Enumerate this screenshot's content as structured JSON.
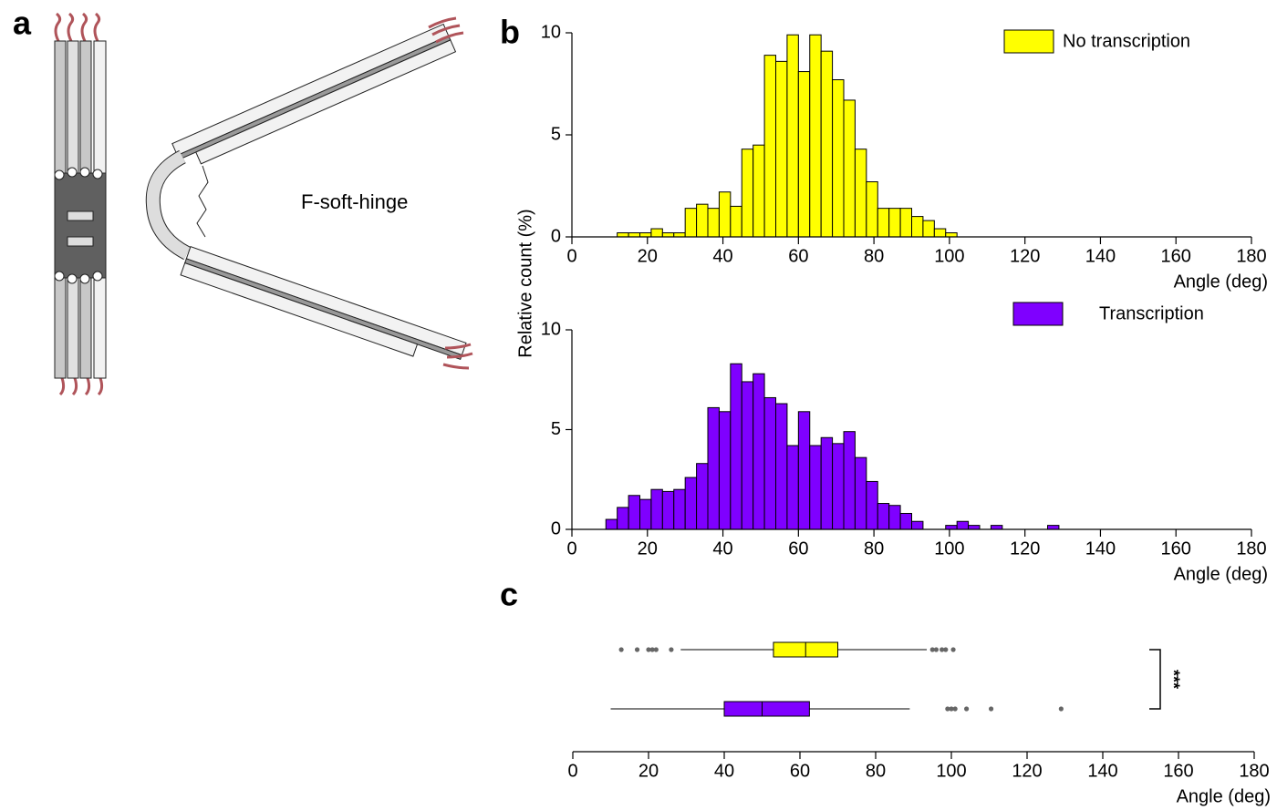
{
  "panel_labels": [
    "a",
    "b",
    "c"
  ],
  "diagram": {
    "label": "F-soft-hinge"
  },
  "chart_data": [
    {
      "type": "histogram",
      "legend": "No transcription",
      "color": "#ffff00",
      "bins": [
        12,
        15,
        18,
        21,
        24,
        27,
        30,
        33,
        36,
        39,
        42,
        45,
        48,
        51,
        54,
        57,
        60,
        63,
        66,
        69,
        72,
        75,
        78,
        81,
        84,
        87,
        90,
        93,
        96,
        99,
        102
      ],
      "values": [
        0.2,
        0.2,
        0.2,
        0.4,
        0.2,
        0.2,
        1.4,
        1.6,
        1.4,
        2.2,
        1.5,
        4.3,
        4.5,
        8.9,
        8.6,
        9.9,
        8.1,
        9.9,
        9.1,
        7.7,
        6.7,
        4.3,
        2.7,
        1.4,
        1.4,
        1.4,
        1.0,
        0.8,
        0.4,
        0.2
      ],
      "xlim": [
        0,
        180
      ],
      "xticks": [
        0,
        20,
        40,
        60,
        80,
        100,
        120,
        140,
        160,
        180
      ],
      "ylim": [
        0,
        10
      ],
      "yticks": [
        0,
        5,
        10
      ],
      "xlabel": "Angle (deg)",
      "ylabel": "Relative count (%)"
    },
    {
      "type": "histogram",
      "legend": "Transcription",
      "color": "#7f00ff",
      "bins": [
        9,
        12,
        15,
        18,
        21,
        24,
        27,
        30,
        33,
        36,
        39,
        42,
        45,
        48,
        51,
        54,
        57,
        60,
        63,
        66,
        69,
        72,
        75,
        78,
        81,
        84,
        87,
        90,
        93,
        96,
        99,
        102,
        105,
        108,
        111,
        114,
        117,
        120,
        123,
        126,
        129
      ],
      "values": [
        0.5,
        1.1,
        1.7,
        1.5,
        2.0,
        1.9,
        2.0,
        2.6,
        3.3,
        6.1,
        5.9,
        8.3,
        7.4,
        7.8,
        6.6,
        6.3,
        4.2,
        5.9,
        4.2,
        4.6,
        4.3,
        4.9,
        3.6,
        2.4,
        1.3,
        1.2,
        0.8,
        0.4,
        0,
        0,
        0.2,
        0.4,
        0.2,
        0,
        0.2,
        0,
        0,
        0,
        0,
        0.2
      ],
      "xlim": [
        0,
        180
      ],
      "xticks": [
        0,
        20,
        40,
        60,
        80,
        100,
        120,
        140,
        160,
        180
      ],
      "ylim": [
        0,
        10
      ],
      "yticks": [
        0,
        5,
        10
      ],
      "xlabel": "Angle (deg)"
    },
    {
      "type": "box",
      "boxes": [
        {
          "color": "#ffff00",
          "low": 28.5,
          "q1": 53,
          "median": 61.5,
          "q3": 70,
          "high": 93.5,
          "outliers": [
            12.8,
            17,
            20,
            21,
            22,
            26,
            95,
            96,
            97.5,
            98.5,
            100.5
          ]
        },
        {
          "color": "#7f00ff",
          "low": 10,
          "q1": 40,
          "median": 50,
          "q3": 62.5,
          "high": 89,
          "outliers": [
            99,
            100,
            101,
            104,
            110.5,
            129
          ]
        }
      ],
      "xlim": [
        0,
        180
      ],
      "xticks": [
        0,
        20,
        40,
        60,
        80,
        100,
        120,
        140,
        160,
        180
      ],
      "xlabel": "Angle (deg)",
      "annotation": "***"
    }
  ]
}
